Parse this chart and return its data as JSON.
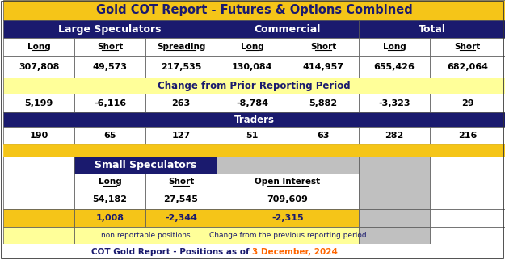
{
  "title": "Gold COT Report - Futures & Options Combined",
  "title_bg": "#F5C518",
  "title_color": "#1a1a6e",
  "section_bg": "#1a1a6e",
  "yellow_bg": "#FFFF99",
  "yellow_dark": "#F5C518",
  "white_bg": "#FFFFFF",
  "gray_bg": "#C0C0C0",
  "large_spec_label": "Large Speculators",
  "commercial_label": "Commercial",
  "total_label": "Total",
  "col_headers": [
    "Long",
    "Short",
    "Spreading",
    "Long",
    "Short",
    "Long",
    "Short"
  ],
  "col_values": [
    "307,808",
    "49,573",
    "217,535",
    "130,084",
    "414,957",
    "655,426",
    "682,064"
  ],
  "change_label": "Change from Prior Reporting Period",
  "change_values": [
    "5,199",
    "-6,116",
    "263",
    "-8,784",
    "5,882",
    "-3,323",
    "29"
  ],
  "traders_label": "Traders",
  "traders_values": [
    "190",
    "65",
    "127",
    "51",
    "63",
    "282",
    "216"
  ],
  "small_spec_label": "Small Speculators",
  "ss_col_headers": [
    "Long",
    "Short",
    "Open Interest"
  ],
  "ss_col_values": [
    "54,182",
    "27,545",
    "709,609"
  ],
  "ss_change_values": [
    "1,008",
    "-2,344",
    "-2,315"
  ],
  "ss_note1": "non reportable positions",
  "ss_note2": "Change from the previous reporting period",
  "footer_text": "COT Gold Report - Positions as of ",
  "footer_date": "3 December, 2024",
  "footer_color": "#1a1a6e",
  "footer_date_color": "#FF6600"
}
